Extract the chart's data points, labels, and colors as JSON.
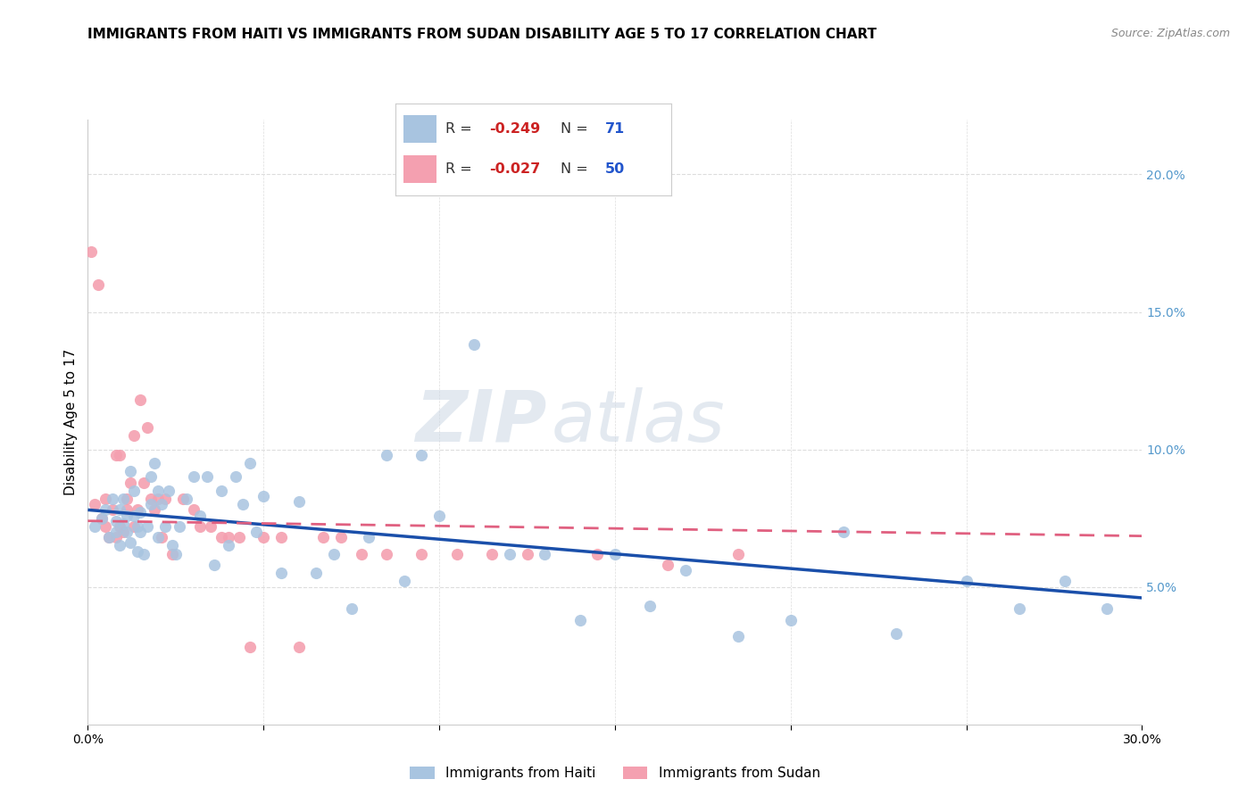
{
  "title": "IMMIGRANTS FROM HAITI VS IMMIGRANTS FROM SUDAN DISABILITY AGE 5 TO 17 CORRELATION CHART",
  "source": "Source: ZipAtlas.com",
  "ylabel": "Disability Age 5 to 17",
  "xlim": [
    0.0,
    0.3
  ],
  "ylim": [
    0.0,
    0.22
  ],
  "xticks": [
    0.0,
    0.05,
    0.1,
    0.15,
    0.2,
    0.25,
    0.3
  ],
  "yticks_right": [
    0.0,
    0.05,
    0.1,
    0.15,
    0.2
  ],
  "haiti_color": "#a8c4e0",
  "sudan_color": "#f4a0b0",
  "haiti_line_color": "#1a4faa",
  "sudan_line_color": "#e06080",
  "haiti_R": "-0.249",
  "haiti_N": "71",
  "sudan_R": "-0.027",
  "sudan_N": "50",
  "haiti_scatter_x": [
    0.002,
    0.004,
    0.005,
    0.006,
    0.007,
    0.008,
    0.008,
    0.009,
    0.009,
    0.01,
    0.01,
    0.011,
    0.011,
    0.012,
    0.012,
    0.013,
    0.013,
    0.014,
    0.014,
    0.015,
    0.015,
    0.016,
    0.017,
    0.018,
    0.018,
    0.019,
    0.02,
    0.02,
    0.021,
    0.022,
    0.023,
    0.024,
    0.025,
    0.026,
    0.028,
    0.03,
    0.032,
    0.034,
    0.036,
    0.038,
    0.04,
    0.042,
    0.044,
    0.046,
    0.048,
    0.05,
    0.055,
    0.06,
    0.065,
    0.07,
    0.075,
    0.08,
    0.085,
    0.09,
    0.095,
    0.1,
    0.11,
    0.12,
    0.13,
    0.14,
    0.15,
    0.16,
    0.17,
    0.185,
    0.2,
    0.215,
    0.23,
    0.25,
    0.265,
    0.278,
    0.29
  ],
  "haiti_scatter_y": [
    0.072,
    0.075,
    0.078,
    0.068,
    0.082,
    0.074,
    0.07,
    0.078,
    0.065,
    0.082,
    0.073,
    0.07,
    0.076,
    0.092,
    0.066,
    0.085,
    0.076,
    0.072,
    0.063,
    0.077,
    0.07,
    0.062,
    0.072,
    0.08,
    0.09,
    0.095,
    0.068,
    0.085,
    0.08,
    0.072,
    0.085,
    0.065,
    0.062,
    0.072,
    0.082,
    0.09,
    0.076,
    0.09,
    0.058,
    0.085,
    0.065,
    0.09,
    0.08,
    0.095,
    0.07,
    0.083,
    0.055,
    0.081,
    0.055,
    0.062,
    0.042,
    0.068,
    0.098,
    0.052,
    0.098,
    0.076,
    0.138,
    0.062,
    0.062,
    0.038,
    0.062,
    0.043,
    0.056,
    0.032,
    0.038,
    0.07,
    0.033,
    0.052,
    0.042,
    0.052,
    0.042
  ],
  "sudan_scatter_x": [
    0.001,
    0.002,
    0.003,
    0.004,
    0.005,
    0.005,
    0.006,
    0.007,
    0.008,
    0.008,
    0.009,
    0.009,
    0.01,
    0.011,
    0.011,
    0.012,
    0.013,
    0.013,
    0.014,
    0.015,
    0.016,
    0.017,
    0.018,
    0.019,
    0.02,
    0.021,
    0.022,
    0.024,
    0.027,
    0.03,
    0.032,
    0.035,
    0.038,
    0.04,
    0.043,
    0.046,
    0.05,
    0.055,
    0.06,
    0.067,
    0.072,
    0.078,
    0.085,
    0.095,
    0.105,
    0.115,
    0.125,
    0.145,
    0.165,
    0.185
  ],
  "sudan_scatter_y": [
    0.172,
    0.08,
    0.16,
    0.075,
    0.082,
    0.072,
    0.068,
    0.078,
    0.098,
    0.068,
    0.098,
    0.072,
    0.07,
    0.082,
    0.078,
    0.088,
    0.072,
    0.105,
    0.078,
    0.118,
    0.088,
    0.108,
    0.082,
    0.078,
    0.082,
    0.068,
    0.082,
    0.062,
    0.082,
    0.078,
    0.072,
    0.072,
    0.068,
    0.068,
    0.068,
    0.028,
    0.068,
    0.068,
    0.028,
    0.068,
    0.068,
    0.062,
    0.062,
    0.062,
    0.062,
    0.062,
    0.062,
    0.062,
    0.058,
    0.062
  ],
  "haiti_trend_x": [
    0.0,
    0.3
  ],
  "haiti_trend_y": [
    0.078,
    0.046
  ],
  "sudan_trend_x": [
    0.0,
    0.3
  ],
  "sudan_trend_y": [
    0.074,
    0.0685
  ],
  "grid_color": "#dddddd",
  "background_color": "#ffffff",
  "title_fontsize": 11,
  "axis_fontsize": 11,
  "tick_fontsize": 10
}
